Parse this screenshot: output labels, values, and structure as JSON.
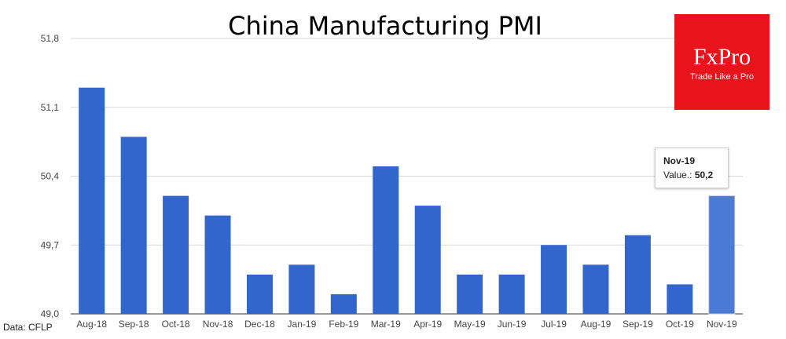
{
  "source_note": "Data: CFLP",
  "logo": {
    "name": "FxPro",
    "tagline": "Trade Like a Pro",
    "color": "#e8141c"
  },
  "tooltip": {
    "title": "Nov-19",
    "label": "Value.:",
    "value": "50,2"
  },
  "chart_data": {
    "type": "bar",
    "title": "China Manufacturing PMI",
    "xlabel": "",
    "ylabel": "",
    "categories": [
      "Aug-18",
      "Sep-18",
      "Oct-18",
      "Nov-18",
      "Dec-18",
      "Jan-19",
      "Feb-19",
      "Mar-19",
      "Apr-19",
      "May-19",
      "Jun-19",
      "Jul-19",
      "Aug-19",
      "Sep-19",
      "Oct-19",
      "Nov-19"
    ],
    "values": [
      51.3,
      50.8,
      50.2,
      50.0,
      49.4,
      49.5,
      49.2,
      50.5,
      50.1,
      49.4,
      49.4,
      49.7,
      49.5,
      49.8,
      49.3,
      50.2
    ],
    "ylim": [
      49.0,
      51.8
    ],
    "yticks": [
      49.0,
      49.7,
      50.4,
      51.1,
      51.8
    ],
    "ytick_labels": [
      "49,0",
      "49,7",
      "50,4",
      "51,1",
      "51,8"
    ],
    "grid": true,
    "bar_color": "#3366cc",
    "highlight_color": "#4a79d6",
    "highlighted_category": "Nov-19"
  }
}
